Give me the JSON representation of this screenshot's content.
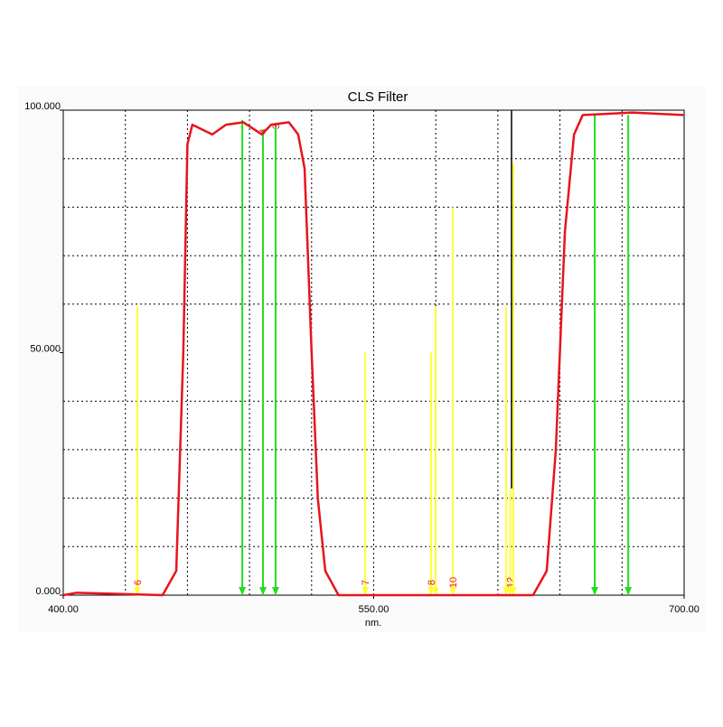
{
  "chart_data": {
    "type": "line",
    "title": "CLS Filter",
    "xlabel": "nm.",
    "x": [
      400,
      406.5,
      448,
      454.6,
      458,
      460,
      462.4,
      472,
      478.6,
      487,
      496,
      500.4,
      509,
      513.5,
      516.6,
      520,
      523,
      526.6,
      533,
      627,
      633.6,
      638,
      642.4,
      646.8,
      651,
      675,
      700
    ],
    "series": [
      {
        "name": "CLS Filter",
        "color": "#e8141b",
        "values": [
          0,
          0.5,
          0,
          5,
          50,
          93,
          97,
          95,
          97,
          97.5,
          95,
          97,
          97.5,
          95,
          88,
          50,
          20,
          5,
          0,
          0,
          5,
          30,
          75,
          95,
          99,
          99.5,
          99
        ]
      }
    ],
    "xlim": [
      400,
      700
    ],
    "ylim": [
      0,
      100
    ],
    "xticks": [
      {
        "value": 400,
        "label": "400.00"
      },
      {
        "value": 550,
        "label": "550.00"
      },
      {
        "value": 700,
        "label": "700.00"
      }
    ],
    "yticks": [
      {
        "value": 0,
        "label": "0.000"
      },
      {
        "value": 50,
        "label": "50.000"
      },
      {
        "value": 100,
        "label": "100.000"
      }
    ],
    "xgrid": [
      430,
      460,
      490,
      520,
      550,
      580,
      610,
      640,
      670
    ],
    "ygrid": [
      10,
      20,
      30,
      40,
      60,
      70,
      80,
      90
    ],
    "cursor": {
      "x": 616.6,
      "value": 22,
      "color": "#000000"
    },
    "markers": [
      {
        "x": 435.8,
        "value": 59.5,
        "color": "#ffff33",
        "label": "6"
      },
      {
        "x": 486.5,
        "value": 98,
        "color": "#22dd22"
      },
      {
        "x": 496.5,
        "value": 96,
        "color": "#22dd22",
        "label": "4"
      },
      {
        "x": 502.6,
        "value": 97,
        "color": "#22dd22",
        "label": "3"
      },
      {
        "x": 545.9,
        "value": 50,
        "color": "#ffff33",
        "label": "7"
      },
      {
        "x": 577.7,
        "value": 50,
        "color": "#ffff33",
        "label": "8"
      },
      {
        "x": 579.9,
        "value": 59.5,
        "color": "#ffff33"
      },
      {
        "x": 588.2,
        "value": 80,
        "color": "#ffff33",
        "label": "10"
      },
      {
        "x": 614,
        "value": 59.5,
        "color": "#ffff33"
      },
      {
        "x": 616,
        "value": 22,
        "color": "#ffff33",
        "label": "12"
      },
      {
        "x": 617.5,
        "value": 89,
        "color": "#ffff33"
      },
      {
        "x": 656.8,
        "value": 99,
        "color": "#22dd22"
      },
      {
        "x": 673,
        "value": 99,
        "color": "#22dd22"
      }
    ]
  }
}
